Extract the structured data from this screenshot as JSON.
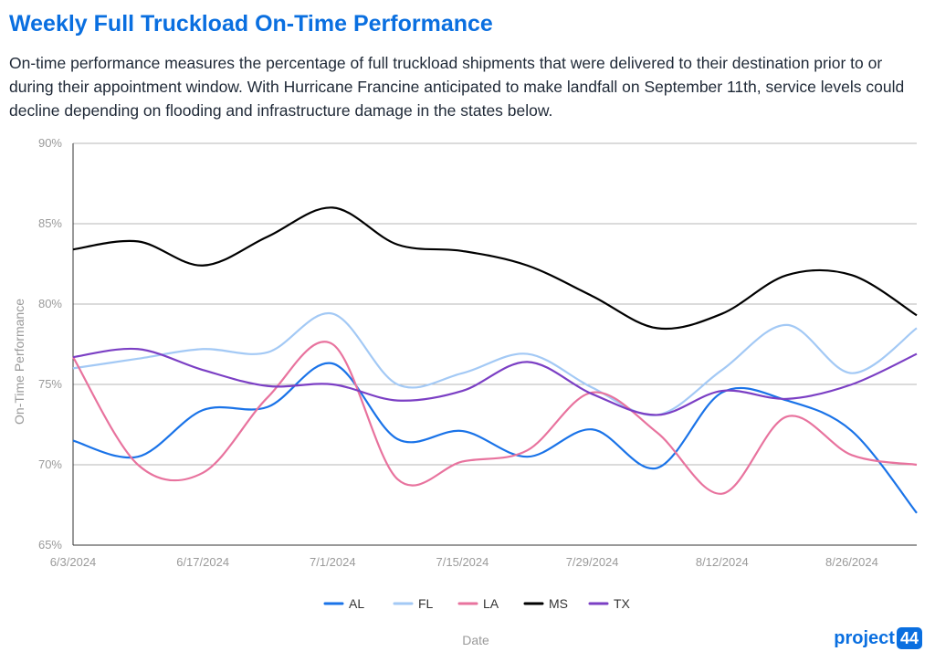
{
  "header": {
    "title": "Weekly Full Truckload On-Time Performance",
    "description": "On-time performance measures the percentage of full truckload shipments that were delivered to their destination prior to or during their appointment window. With Hurricane Francine anticipated to  make landfall on September 11th, service levels could decline depending on flooding and infrastructure damage in the states below."
  },
  "logo": {
    "text": "project",
    "badge": "44"
  },
  "chart_data": {
    "type": "line",
    "xlabel": "Date",
    "ylabel": "On-Time Performance",
    "x": [
      "6/3/2024",
      "6/10/2024",
      "6/17/2024",
      "6/24/2024",
      "7/1/2024",
      "7/8/2024",
      "7/15/2024",
      "7/22/2024",
      "7/29/2024",
      "8/5/2024",
      "8/12/2024",
      "8/19/2024",
      "8/26/2024",
      "9/2/2024"
    ],
    "x_tick_labels": [
      "6/3/2024",
      "6/17/2024",
      "7/1/2024",
      "7/15/2024",
      "7/29/2024",
      "8/12/2024",
      "8/26/2024"
    ],
    "ylim": [
      65,
      90
    ],
    "y_ticks": [
      65,
      70,
      75,
      80,
      85,
      90
    ],
    "y_tick_format": "%",
    "grid": true,
    "legend_position": "bottom",
    "series": [
      {
        "name": "AL",
        "color": "#1a73e8",
        "values": [
          71.5,
          70.5,
          73.4,
          73.6,
          76.3,
          71.6,
          72.1,
          70.5,
          72.2,
          69.8,
          74.5,
          74.0,
          72.1,
          67.0
        ]
      },
      {
        "name": "FL",
        "color": "#a3c9f5",
        "values": [
          76.0,
          76.6,
          77.2,
          77.0,
          79.4,
          75.0,
          75.7,
          76.9,
          74.8,
          73.1,
          75.9,
          78.7,
          75.7,
          78.5
        ]
      },
      {
        "name": "LA",
        "color": "#e8739e",
        "values": [
          76.7,
          70.0,
          69.5,
          74.2,
          77.5,
          69.1,
          70.2,
          70.9,
          74.5,
          72.0,
          68.2,
          73.0,
          70.6,
          70.0
        ]
      },
      {
        "name": "MS",
        "color": "#000000",
        "values": [
          83.4,
          83.9,
          82.4,
          84.2,
          86.0,
          83.7,
          83.3,
          82.4,
          80.5,
          78.5,
          79.4,
          81.8,
          81.8,
          79.3
        ]
      },
      {
        "name": "TX",
        "color": "#7b3fc4",
        "values": [
          76.7,
          77.2,
          75.9,
          74.9,
          75.0,
          74.0,
          74.6,
          76.4,
          74.4,
          73.1,
          74.6,
          74.1,
          75.0,
          76.9
        ]
      }
    ]
  }
}
